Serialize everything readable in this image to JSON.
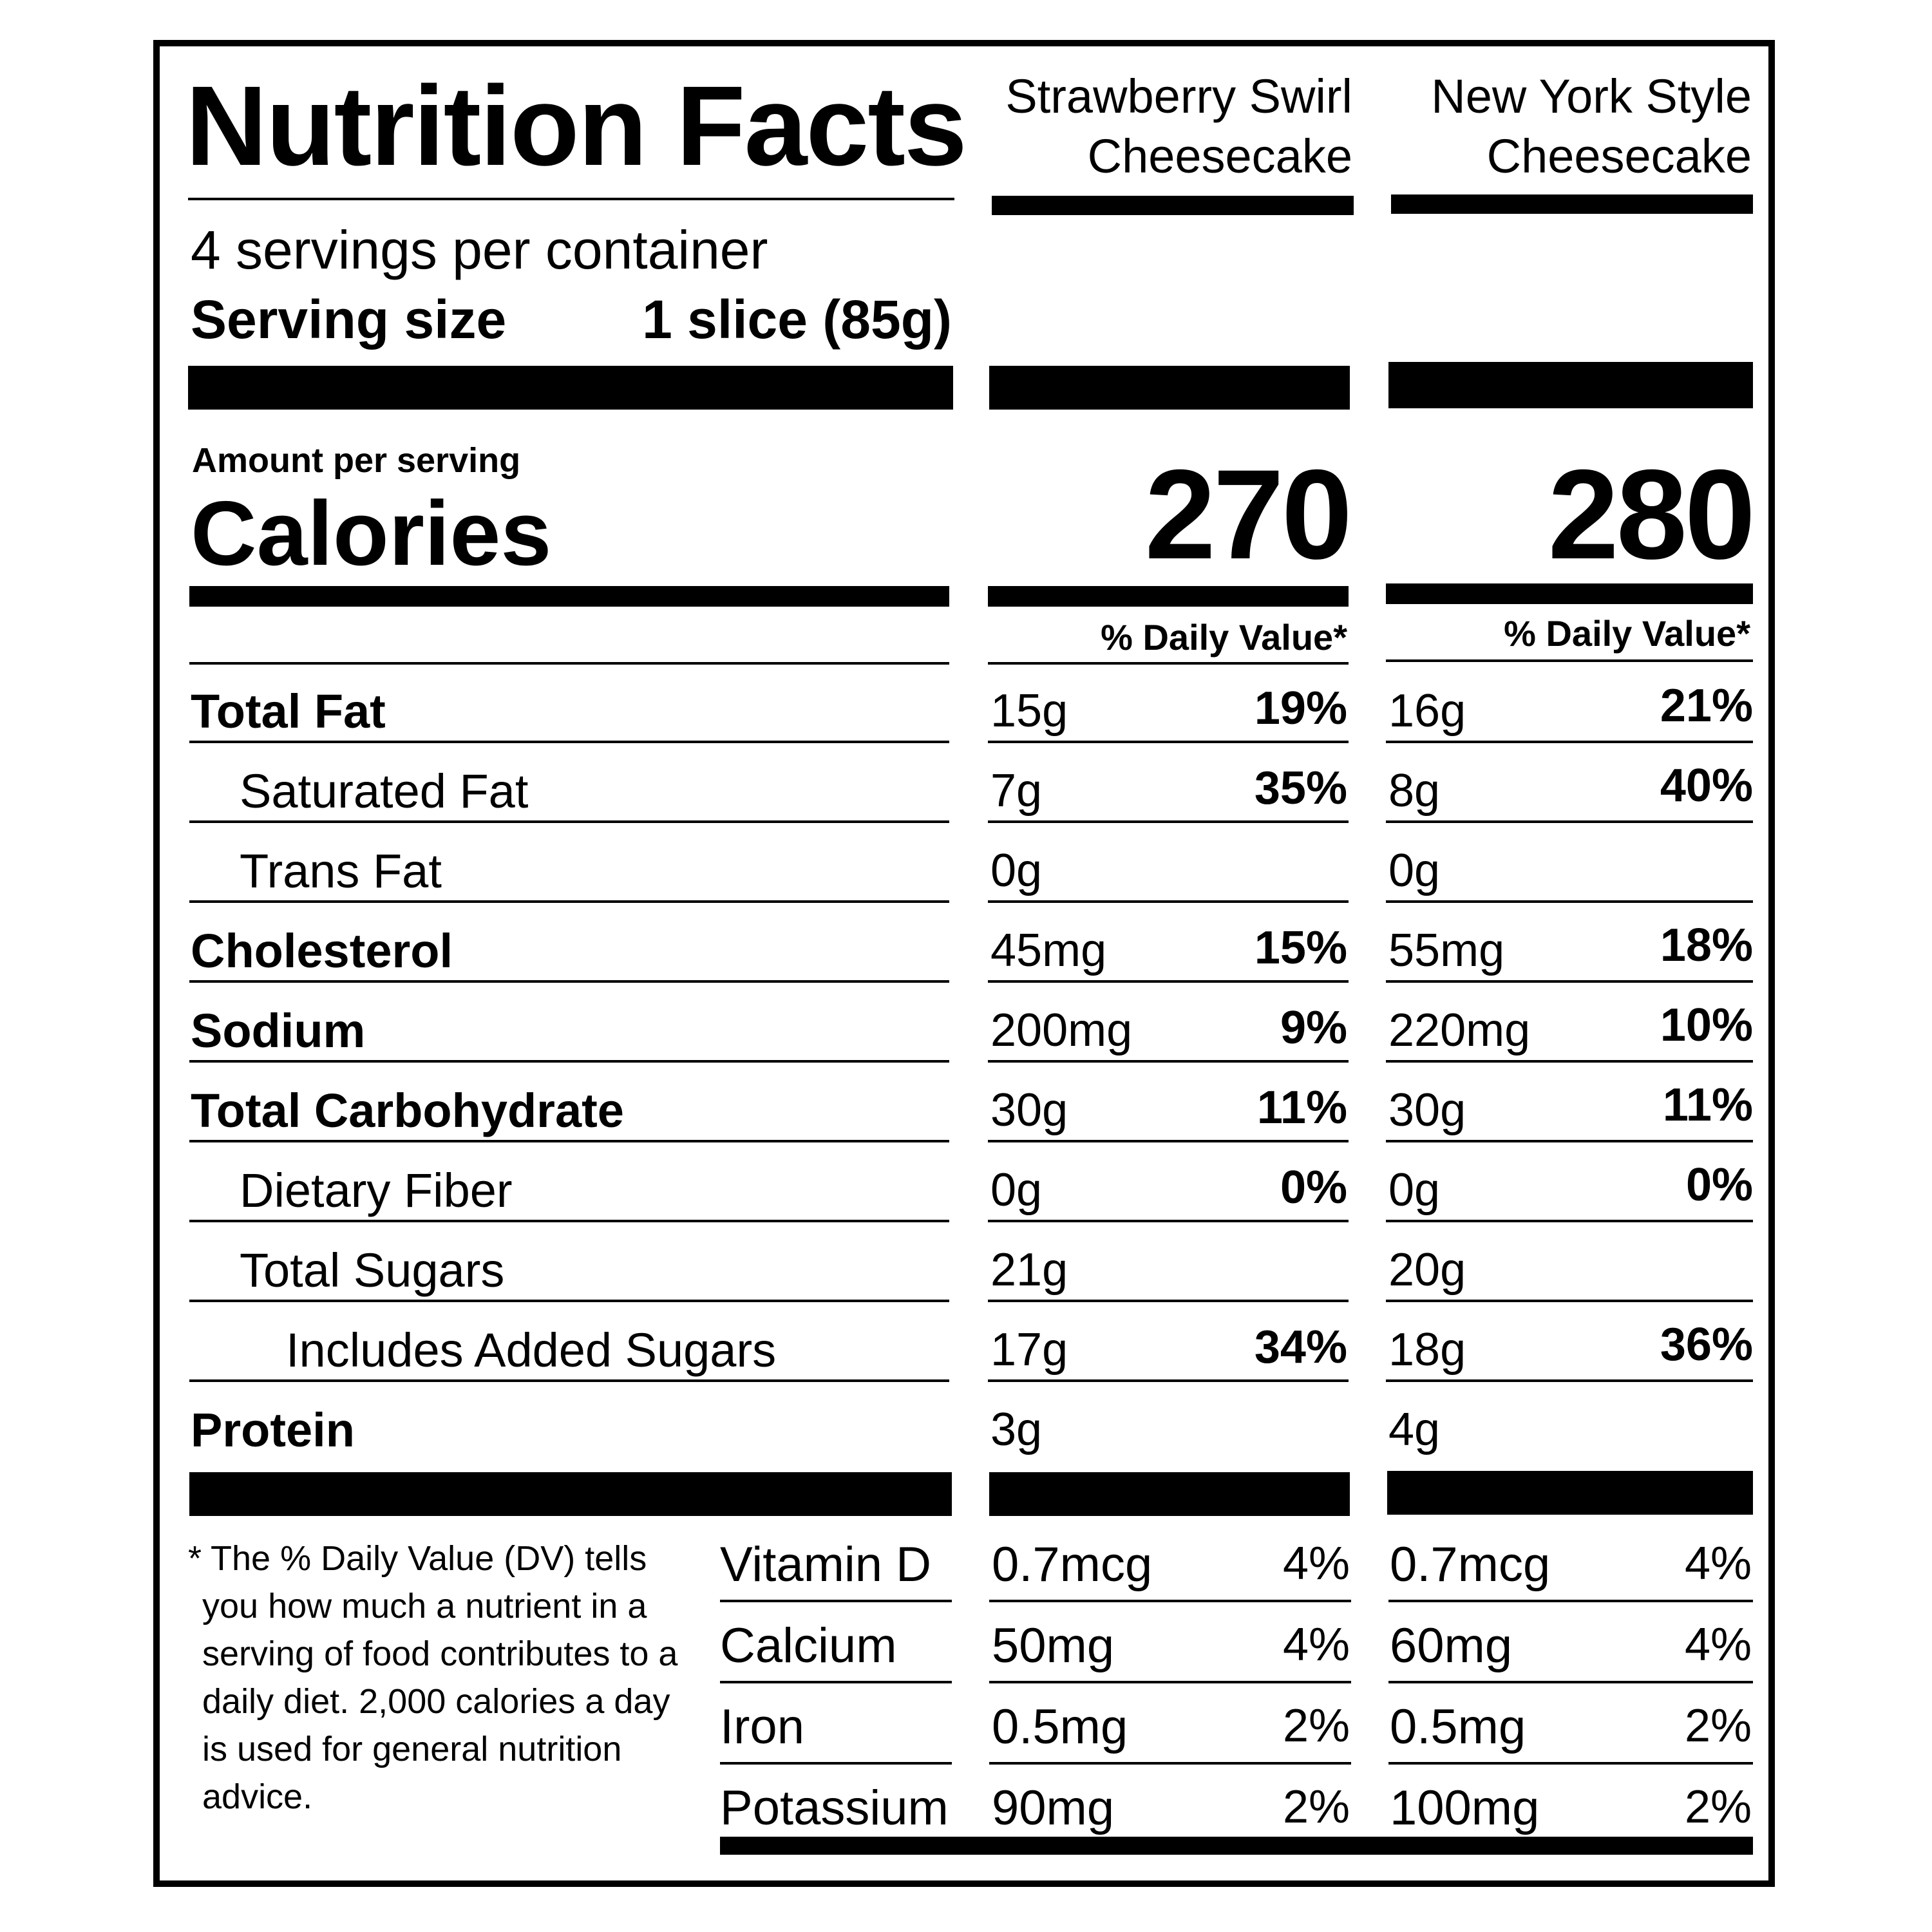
{
  "title": "Nutrition Facts",
  "products": [
    {
      "name_line1": "Strawberry Swirl",
      "name_line2": "Cheesecake",
      "calories": "270",
      "dv_header": "% Daily Value*"
    },
    {
      "name_line1": "New York Style",
      "name_line2": "Cheesecake",
      "calories": "280",
      "dv_header": "% Daily Value*"
    }
  ],
  "servings_per_container": "4 servings per container",
  "serving_size_label": "Serving size",
  "serving_size_value": "1 slice (85g)",
  "amount_per_serving": "Amount per serving",
  "calories_label": "Calories",
  "nutrients": [
    {
      "label": "Total Fat",
      "bold": true,
      "indent": 0,
      "p1_amount": "15g",
      "p1_dv": "19%",
      "p2_amount": "16g",
      "p2_dv": "21%"
    },
    {
      "label": "Saturated Fat",
      "bold": false,
      "indent": 1,
      "p1_amount": "7g",
      "p1_dv": "35%",
      "p2_amount": "8g",
      "p2_dv": "40%"
    },
    {
      "label": "Trans Fat",
      "bold": false,
      "indent": 1,
      "p1_amount": "0g",
      "p1_dv": "",
      "p2_amount": "0g",
      "p2_dv": ""
    },
    {
      "label": "Cholesterol",
      "bold": true,
      "indent": 0,
      "p1_amount": "45mg",
      "p1_dv": "15%",
      "p2_amount": "55mg",
      "p2_dv": "18%"
    },
    {
      "label": "Sodium",
      "bold": true,
      "indent": 0,
      "p1_amount": "200mg",
      "p1_dv": "9%",
      "p2_amount": "220mg",
      "p2_dv": "10%"
    },
    {
      "label": "Total Carbohydrate",
      "bold": true,
      "indent": 0,
      "p1_amount": "30g",
      "p1_dv": "11%",
      "p2_amount": "30g",
      "p2_dv": "11%"
    },
    {
      "label": "Dietary Fiber",
      "bold": false,
      "indent": 1,
      "p1_amount": "0g",
      "p1_dv": "0%",
      "p2_amount": "0g",
      "p2_dv": "0%"
    },
    {
      "label": "Total Sugars",
      "bold": false,
      "indent": 1,
      "p1_amount": "21g",
      "p1_dv": "",
      "p2_amount": "20g",
      "p2_dv": ""
    },
    {
      "label": "Includes Added Sugars",
      "bold": false,
      "indent": 2,
      "p1_amount": "17g",
      "p1_dv": "34%",
      "p2_amount": "18g",
      "p2_dv": "36%"
    },
    {
      "label": "Protein",
      "bold": true,
      "indent": 0,
      "p1_amount": "3g",
      "p1_dv": "",
      "p2_amount": "4g",
      "p2_dv": ""
    }
  ],
  "vitamins": [
    {
      "label": "Vitamin D",
      "p1_amount": "0.7mcg",
      "p1_dv": "4%",
      "p2_amount": "0.7mcg",
      "p2_dv": "4%"
    },
    {
      "label": "Calcium",
      "p1_amount": "50mg",
      "p1_dv": "4%",
      "p2_amount": "60mg",
      "p2_dv": "4%"
    },
    {
      "label": "Iron",
      "p1_amount": "0.5mg",
      "p1_dv": "2%",
      "p2_amount": "0.5mg",
      "p2_dv": "2%"
    },
    {
      "label": "Potassium",
      "p1_amount": "90mg",
      "p1_dv": "2%",
      "p2_amount": "100mg",
      "p2_dv": "2%"
    }
  ],
  "footnote": "* The % Daily Value (DV) tells you how much a nutrient in a serving of food contributes to a daily diet. 2,000 calories a day is used for general nutrition advice."
}
